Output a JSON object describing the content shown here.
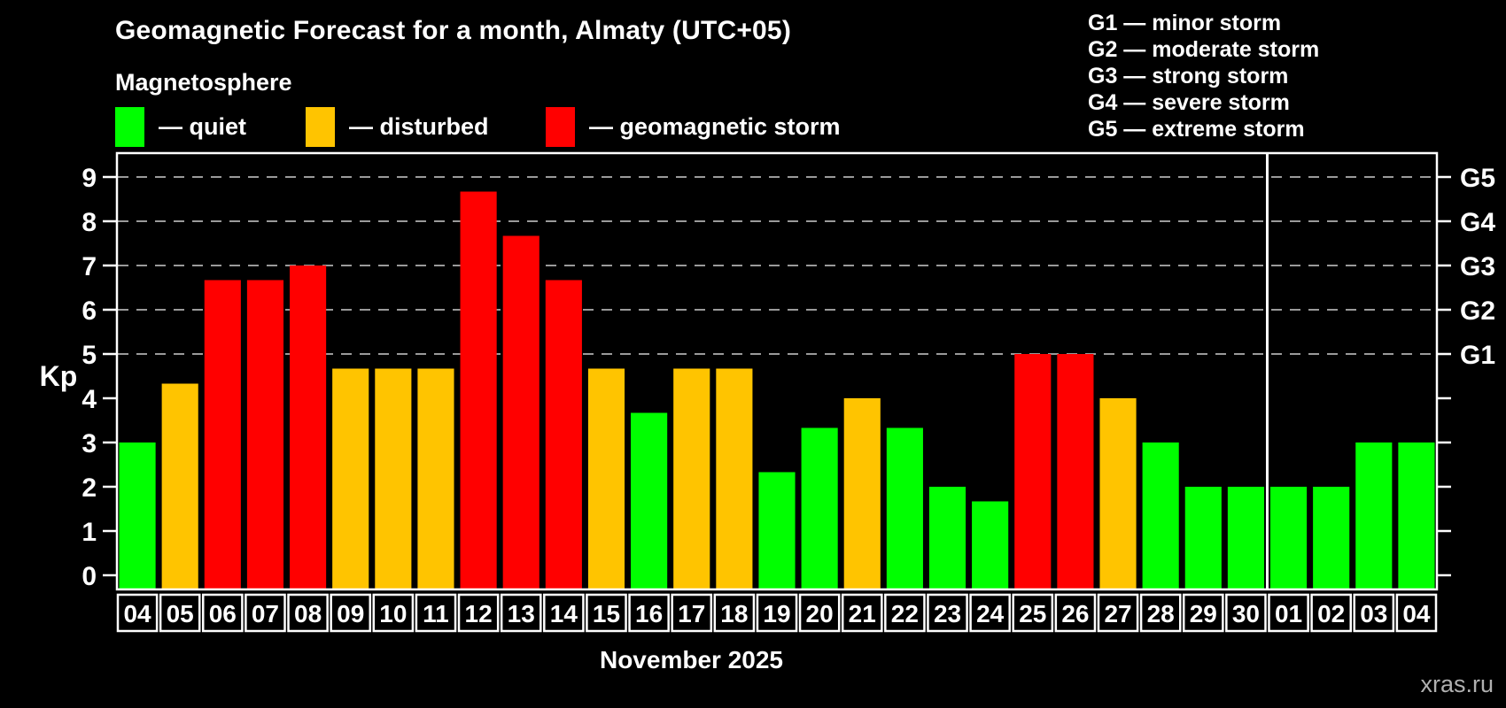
{
  "title": "Geomagnetic Forecast for a month, Almaty (UTC+05)",
  "subtitle": "Magnetosphere",
  "legend": {
    "items": [
      {
        "status": "quiet",
        "label": "— quiet",
        "color": "#00ff00"
      },
      {
        "status": "disturbed",
        "label": "— disturbed",
        "color": "#ffc400"
      },
      {
        "status": "storm",
        "label": "— geomagnetic storm",
        "color": "#ff0000"
      }
    ]
  },
  "g_legend": [
    {
      "text": "G1 — minor storm"
    },
    {
      "text": "G2 — moderate storm"
    },
    {
      "text": "G3 — strong storm"
    },
    {
      "text": "G4 — severe storm"
    },
    {
      "text": "G5 — extreme storm"
    }
  ],
  "chart_data": {
    "type": "bar",
    "title": "Geomagnetic Forecast for a month, Almaty (UTC+05)",
    "xlabel": "November 2025",
    "ylabel": "Kp",
    "ylim": [
      0,
      9.5
    ],
    "y_ticks": [
      0,
      1,
      2,
      3,
      4,
      5,
      6,
      7,
      8,
      9
    ],
    "grid_kp_levels": [
      5,
      6,
      7,
      8,
      9
    ],
    "right_axis_labels": [
      {
        "kp": 5,
        "label": "G1"
      },
      {
        "kp": 6,
        "label": "G2"
      },
      {
        "kp": 7,
        "label": "G3"
      },
      {
        "kp": 8,
        "label": "G4"
      },
      {
        "kp": 9,
        "label": "G5"
      }
    ],
    "categories": [
      "04",
      "05",
      "06",
      "07",
      "08",
      "09",
      "10",
      "11",
      "12",
      "13",
      "14",
      "15",
      "16",
      "17",
      "18",
      "19",
      "20",
      "21",
      "22",
      "23",
      "24",
      "25",
      "26",
      "27",
      "28",
      "29",
      "30",
      "01",
      "02",
      "03",
      "04"
    ],
    "values": [
      3,
      4.33,
      6.67,
      6.67,
      7,
      4.67,
      4.67,
      4.67,
      8.67,
      7.67,
      6.67,
      4.67,
      3.67,
      4.67,
      4.67,
      2.33,
      3.33,
      4,
      3.33,
      2,
      1.67,
      5,
      5,
      4,
      3,
      2,
      2,
      2,
      2,
      3,
      3
    ],
    "statuses": [
      "quiet",
      "disturbed",
      "storm",
      "storm",
      "storm",
      "disturbed",
      "disturbed",
      "disturbed",
      "storm",
      "storm",
      "storm",
      "disturbed",
      "quiet",
      "disturbed",
      "disturbed",
      "quiet",
      "quiet",
      "disturbed",
      "quiet",
      "quiet",
      "quiet",
      "storm",
      "storm",
      "disturbed",
      "quiet",
      "quiet",
      "quiet",
      "quiet",
      "quiet",
      "quiet",
      "quiet"
    ],
    "colors": {
      "quiet": "#00ff00",
      "disturbed": "#ffc400",
      "storm": "#ff0000"
    },
    "month_separator_after_index": 26,
    "legend_position": "top",
    "grid": "dashed-upper-levels-only"
  },
  "footer": {
    "month_label": "November 2025",
    "watermark": "xras.ru"
  }
}
